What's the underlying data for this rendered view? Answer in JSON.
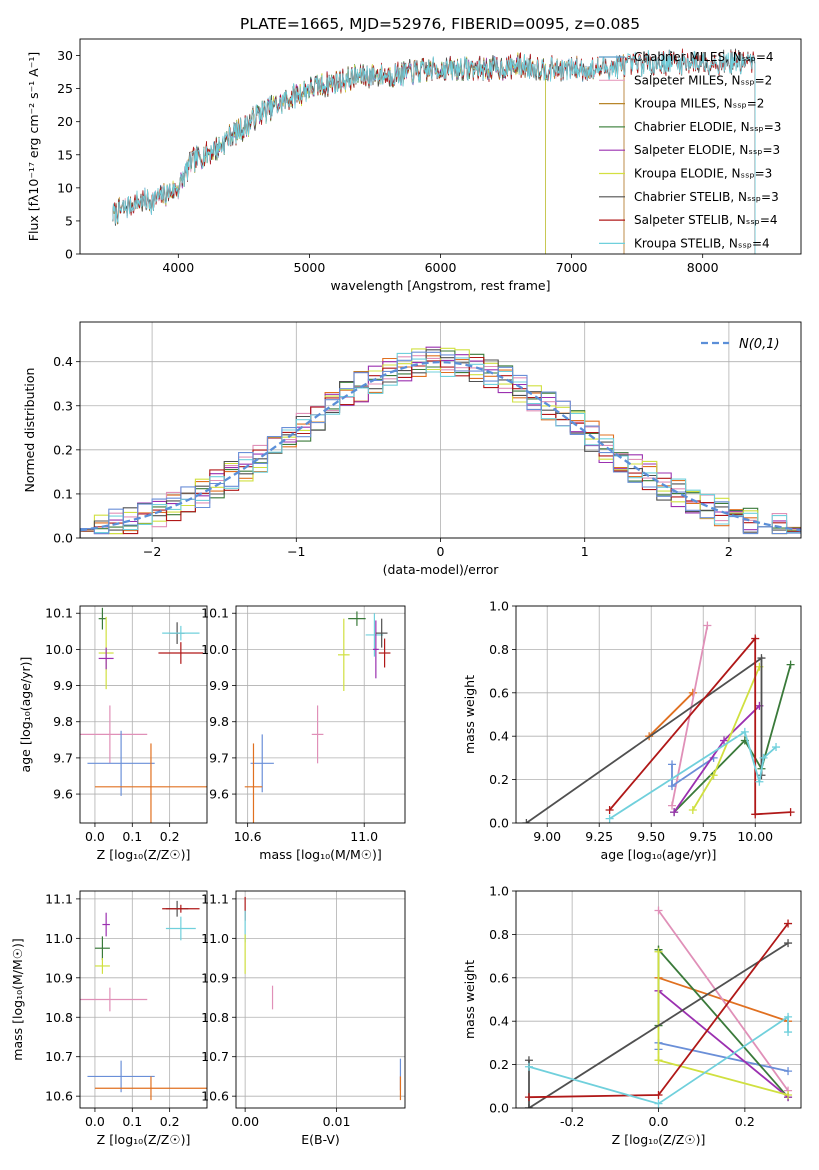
{
  "figure": {
    "title": "PLATE=1665, MJD=52976, FIBERID=0095, z=0.085"
  },
  "chart_data": [
    {
      "id": "spectrum",
      "type": "line",
      "xlabel": "wavelength [Angstrom, rest frame]",
      "ylabel": "Flux [fλ10⁻¹⁷ erg cm⁻² s⁻¹ A⁻¹]",
      "xlim": [
        3250,
        8750
      ],
      "ylim": [
        0,
        32.5
      ],
      "xticks": [
        4000,
        5000,
        6000,
        7000,
        8000
      ],
      "yticks": [
        0,
        5,
        10,
        15,
        20,
        25,
        30
      ],
      "grid": false,
      "legend_position": "top-right",
      "continuum": {
        "x": [
          3500,
          3600,
          3700,
          3800,
          3900,
          4000,
          4100,
          4200,
          4300,
          4400,
          4500,
          4600,
          4800,
          5000,
          5200,
          5400,
          5600,
          5800,
          6000,
          6200,
          6400,
          6600,
          6800,
          7000,
          7200,
          7400,
          7600,
          7800,
          8000,
          8200,
          8400
        ],
        "y": [
          6,
          7,
          8,
          8,
          9,
          10,
          14,
          15,
          16,
          18,
          19,
          21,
          23,
          25,
          26,
          27,
          27,
          27.5,
          28,
          28,
          28,
          28.5,
          28,
          28,
          28,
          28.5,
          29,
          29,
          29,
          29,
          29
        ]
      },
      "series": [
        {
          "name": "Chabrier MILES, Nₛₛₚ=4",
          "color": "#5a9ec9",
          "xmin": 3500,
          "xmax": 7400
        },
        {
          "name": "Salpeter MILES, Nₛₛₚ=2",
          "color": "#e8a0c0",
          "xmin": 3500,
          "xmax": 7400
        },
        {
          "name": "Kroupa MILES, Nₛₛₚ=2",
          "color": "#b8862a",
          "xmin": 3500,
          "xmax": 7400
        },
        {
          "name": "Chabrier ELODIE, Nₛₛₚ=3",
          "color": "#4a8a4a",
          "xmin": 3900,
          "xmax": 6800
        },
        {
          "name": "Salpeter ELODIE, Nₛₛₚ=3",
          "color": "#9b30b0",
          "xmin": 3900,
          "xmax": 6800
        },
        {
          "name": "Kroupa ELODIE, Nₛₛₚ=3",
          "color": "#d4e040",
          "xmin": 3900,
          "xmax": 6800
        },
        {
          "name": "Chabrier STELIB, Nₛₛₚ=3",
          "color": "#505050",
          "xmin": 3500,
          "xmax": 8400
        },
        {
          "name": "Salpeter STELIB, Nₛₛₚ=4",
          "color": "#b01818",
          "xmin": 3500,
          "xmax": 8400
        },
        {
          "name": "Kroupa STELIB, Nₛₛₚ=4",
          "color": "#6fd0dc",
          "xmin": 3500,
          "xmax": 8400
        }
      ]
    },
    {
      "id": "residuals",
      "type": "histogram",
      "xlabel": "(data-model)/error",
      "ylabel": "Normed distribution",
      "xlim": [
        -2.5,
        2.5
      ],
      "ylim": [
        0,
        0.49
      ],
      "xticks": [
        -2,
        -1,
        0,
        1,
        2
      ],
      "yticks": [
        0.0,
        0.1,
        0.2,
        0.3,
        0.4
      ],
      "grid": true,
      "legend_position": "top-right",
      "reference_curve": {
        "name": "N(0,1)",
        "mean": 0,
        "sigma": 1,
        "color": "#5b8fd8"
      },
      "bin_width": 0.1,
      "series_colors": [
        "#e07020",
        "#3a7a3a",
        "#9b30b0",
        "#e090b8",
        "#d0e040",
        "#505050",
        "#b01818",
        "#70d0dc",
        "#6a8fd8"
      ]
    },
    {
      "id": "age-vs-z",
      "type": "scatter",
      "xlabel": "Z [log₁₀(Z/Z☉)]",
      "ylabel": "age  [log₁₀(age/yr)]",
      "xlim": [
        -0.04,
        0.3
      ],
      "ylim": [
        9.52,
        10.12
      ],
      "xticks": [
        0.0,
        0.1,
        0.2
      ],
      "yticks": [
        9.6,
        9.7,
        9.8,
        9.9,
        10.0,
        10.1
      ],
      "grid": true,
      "points": [
        {
          "x": 0.02,
          "y": 10.085,
          "xerr": 0.01,
          "yerr": 0.03,
          "color": "#3a7a3a"
        },
        {
          "x": 0.03,
          "y": 9.99,
          "xerr": 0.02,
          "yerr": 0.1,
          "color": "#d0e040"
        },
        {
          "x": 0.03,
          "y": 9.975,
          "xerr": 0.02,
          "yerr": 0.03,
          "color": "#9b30b0"
        },
        {
          "x": 0.22,
          "y": 10.045,
          "xerr": 0.02,
          "yerr": 0.03,
          "color": "#505050"
        },
        {
          "x": 0.23,
          "y": 10.045,
          "xerr": 0.05,
          "yerr": 0.02,
          "color": "#70d0dc"
        },
        {
          "x": 0.23,
          "y": 9.99,
          "xerr": 0.06,
          "yerr": 0.03,
          "color": "#b01818"
        },
        {
          "x": 0.04,
          "y": 9.765,
          "xerr": 0.1,
          "yerr": 0.08,
          "color": "#e090b8"
        },
        {
          "x": 0.07,
          "y": 9.685,
          "xerr": 0.09,
          "yerr": 0.09,
          "color": "#6a8fd8"
        },
        {
          "x": 0.15,
          "y": 9.62,
          "xerr": 0.15,
          "yerr": 0.12,
          "color": "#e07020"
        }
      ]
    },
    {
      "id": "age-vs-mass",
      "type": "scatter",
      "xlabel": "mass [log₁₀(M/M☉)]",
      "xlim": [
        10.56,
        11.14
      ],
      "ylim": [
        9.52,
        10.12
      ],
      "xticks": [
        10.6,
        11.0
      ],
      "yticks": [
        9.6,
        9.7,
        9.8,
        9.9,
        10.0,
        10.1
      ],
      "grid": true,
      "points": [
        {
          "x": 10.975,
          "y": 10.085,
          "xerr": 0.03,
          "yerr": 0.02,
          "color": "#3a7a3a"
        },
        {
          "x": 10.93,
          "y": 9.985,
          "xerr": 0.02,
          "yerr": 0.1,
          "color": "#d0e040"
        },
        {
          "x": 11.035,
          "y": 10.04,
          "xerr": 0.03,
          "yerr": 0.06,
          "color": "#70d0dc"
        },
        {
          "x": 11.04,
          "y": 10.0,
          "xerr": 0.01,
          "yerr": 0.08,
          "color": "#9b30b0"
        },
        {
          "x": 11.06,
          "y": 10.045,
          "xerr": 0.02,
          "yerr": 0.04,
          "color": "#505050"
        },
        {
          "x": 11.07,
          "y": 9.99,
          "xerr": 0.02,
          "yerr": 0.04,
          "color": "#b01818"
        },
        {
          "x": 10.84,
          "y": 9.765,
          "xerr": 0.02,
          "yerr": 0.08,
          "color": "#e090b8"
        },
        {
          "x": 10.65,
          "y": 9.685,
          "xerr": 0.04,
          "yerr": 0.08,
          "color": "#6a8fd8"
        },
        {
          "x": 10.62,
          "y": 9.62,
          "xerr": 0.03,
          "yerr": 0.12,
          "color": "#e07020"
        }
      ]
    },
    {
      "id": "weight-vs-age",
      "type": "line",
      "xlabel": "age  [log₁₀(age/yr)]",
      "ylabel": "mass weight",
      "xlim": [
        8.85,
        10.22
      ],
      "ylim": [
        0.0,
        1.0
      ],
      "xticks": [
        9.0,
        9.25,
        9.5,
        9.75,
        10.0
      ],
      "xtick_labels": [
        "9.00",
        "9.25",
        "9.50",
        "9.75",
        "10.00"
      ],
      "yticks": [
        0.0,
        0.2,
        0.4,
        0.6,
        0.8,
        1.0
      ],
      "grid": true,
      "series": [
        {
          "color": "#e07020",
          "x": [
            9.49,
            9.7
          ],
          "y": [
            0.4,
            0.6
          ]
        },
        {
          "color": "#e090b8",
          "x": [
            9.6,
            9.77
          ],
          "y": [
            0.08,
            0.91
          ]
        },
        {
          "color": "#6a8fd8",
          "x": [
            9.6,
            9.6,
            9.8
          ],
          "y": [
            0.27,
            0.17,
            0.3
          ]
        },
        {
          "color": "#3a7a3a",
          "x": [
            9.61,
            9.95,
            10.03,
            10.17
          ],
          "y": [
            0.05,
            0.38,
            0.25,
            0.73
          ]
        },
        {
          "color": "#9b30b0",
          "x": [
            9.61,
            9.85,
            10.02
          ],
          "y": [
            0.05,
            0.38,
            0.54
          ]
        },
        {
          "color": "#d0e040",
          "x": [
            9.7,
            9.8,
            10.02
          ],
          "y": [
            0.06,
            0.22,
            0.72
          ]
        },
        {
          "color": "#505050",
          "x": [
            8.9,
            10.03,
            10.03
          ],
          "y": [
            0.0,
            0.76,
            0.22
          ]
        },
        {
          "color": "#b01818",
          "x": [
            9.3,
            10.0,
            10.0,
            10.17
          ],
          "y": [
            0.06,
            0.85,
            0.04,
            0.05
          ]
        },
        {
          "color": "#70d0dc",
          "x": [
            9.3,
            9.95,
            10.02,
            10.04,
            10.1
          ],
          "y": [
            0.02,
            0.42,
            0.19,
            0.3,
            0.35
          ]
        }
      ]
    },
    {
      "id": "mass-vs-z",
      "type": "scatter",
      "xlabel": "Z [log₁₀(Z/Z☉)]",
      "ylabel": "mass [log₁₀(M/M☉)]",
      "xlim": [
        -0.04,
        0.3
      ],
      "ylim": [
        10.57,
        11.12
      ],
      "xticks": [
        0.0,
        0.1,
        0.2
      ],
      "yticks": [
        10.6,
        10.7,
        10.8,
        10.9,
        11.0,
        11.1
      ],
      "grid": true,
      "points": [
        {
          "x": 0.03,
          "y": 11.035,
          "xerr": 0.01,
          "yerr": 0.03,
          "color": "#9b30b0"
        },
        {
          "x": 0.02,
          "y": 10.975,
          "xerr": 0.02,
          "yerr": 0.03,
          "color": "#3a7a3a"
        },
        {
          "x": 0.02,
          "y": 10.93,
          "xerr": 0.02,
          "yerr": 0.02,
          "color": "#d0e040"
        },
        {
          "x": 0.22,
          "y": 11.075,
          "xerr": 0.03,
          "yerr": 0.02,
          "color": "#505050"
        },
        {
          "x": 0.23,
          "y": 11.075,
          "xerr": 0.05,
          "yerr": 0.01,
          "color": "#b01818"
        },
        {
          "x": 0.23,
          "y": 11.025,
          "xerr": 0.04,
          "yerr": 0.03,
          "color": "#70d0dc"
        },
        {
          "x": 0.04,
          "y": 10.845,
          "xerr": 0.1,
          "yerr": 0.03,
          "color": "#e090b8"
        },
        {
          "x": 0.07,
          "y": 10.65,
          "xerr": 0.09,
          "yerr": 0.04,
          "color": "#6a8fd8"
        },
        {
          "x": 0.15,
          "y": 10.62,
          "xerr": 0.15,
          "yerr": 0.03,
          "color": "#e07020"
        }
      ]
    },
    {
      "id": "mass-vs-ebv",
      "type": "scatter",
      "xlabel": "E(B-V)",
      "xlim": [
        -0.001,
        0.0175
      ],
      "ylim": [
        10.57,
        11.12
      ],
      "xticks": [
        0.0,
        0.01
      ],
      "xtick_labels": [
        "0.00",
        "0.01"
      ],
      "yticks": [
        10.6,
        10.7,
        10.8,
        10.9,
        11.0,
        11.1
      ],
      "grid": true,
      "points": [
        {
          "x": 0.0,
          "y": 11.075,
          "xerr": 0,
          "yerr": 0.03,
          "color": "#b01818"
        },
        {
          "x": 0.0,
          "y": 11.03,
          "xerr": 0,
          "yerr": 0.04,
          "color": "#70d0dc"
        },
        {
          "x": 0.0,
          "y": 10.96,
          "xerr": 0,
          "yerr": 0.05,
          "color": "#d0e040"
        },
        {
          "x": 0.003,
          "y": 10.85,
          "xerr": 0,
          "yerr": 0.03,
          "color": "#e090b8"
        },
        {
          "x": 0.017,
          "y": 10.655,
          "xerr": 0,
          "yerr": 0.04,
          "color": "#6a8fd8"
        },
        {
          "x": 0.017,
          "y": 10.62,
          "xerr": 0,
          "yerr": 0.03,
          "color": "#e07020"
        }
      ]
    },
    {
      "id": "weight-vs-z",
      "type": "line",
      "xlabel": "Z [log₁₀(Z/Z☉)]",
      "ylabel": "mass weight",
      "xlim": [
        -0.33,
        0.33
      ],
      "ylim": [
        0.0,
        1.0
      ],
      "xticks": [
        -0.2,
        0.0,
        0.2
      ],
      "yticks": [
        0.0,
        0.2,
        0.4,
        0.6,
        0.8,
        1.0
      ],
      "grid": true,
      "series": [
        {
          "color": "#e07020",
          "x": [
            0.0,
            0.3
          ],
          "y": [
            0.6,
            0.4
          ]
        },
        {
          "color": "#e090b8",
          "x": [
            0.0,
            0.3
          ],
          "y": [
            0.91,
            0.08
          ]
        },
        {
          "color": "#6a8fd8",
          "x": [
            0.0,
            0.3
          ],
          "y": [
            0.3,
            0.17
          ]
        },
        {
          "color": "#6a8fd8",
          "x": [
            0.0,
            0.0
          ],
          "y": [
            0.27,
            0.3
          ]
        },
        {
          "color": "#3a7a3a",
          "x": [
            0.0,
            0.3
          ],
          "y": [
            0.73,
            0.05
          ]
        },
        {
          "color": "#3a7a3a",
          "x": [
            0.0,
            0.0
          ],
          "y": [
            0.38,
            0.73
          ]
        },
        {
          "color": "#9b30b0",
          "x": [
            0.0,
            0.3
          ],
          "y": [
            0.54,
            0.05
          ]
        },
        {
          "color": "#d0e040",
          "x": [
            0.0,
            0.3
          ],
          "y": [
            0.22,
            0.06
          ]
        },
        {
          "color": "#d0e040",
          "x": [
            0.0,
            0.0
          ],
          "y": [
            0.22,
            0.72
          ]
        },
        {
          "color": "#505050",
          "x": [
            -0.3,
            0.3
          ],
          "y": [
            0.0,
            0.76
          ]
        },
        {
          "color": "#505050",
          "x": [
            -0.3,
            -0.3
          ],
          "y": [
            0.22,
            0.0
          ]
        },
        {
          "color": "#b01818",
          "x": [
            -0.3,
            0.0,
            0.3
          ],
          "y": [
            0.05,
            0.06,
            0.85
          ]
        },
        {
          "color": "#70d0dc",
          "x": [
            -0.3,
            0.0,
            0.3,
            0.3
          ],
          "y": [
            0.19,
            0.02,
            0.42,
            0.35
          ]
        }
      ]
    }
  ]
}
